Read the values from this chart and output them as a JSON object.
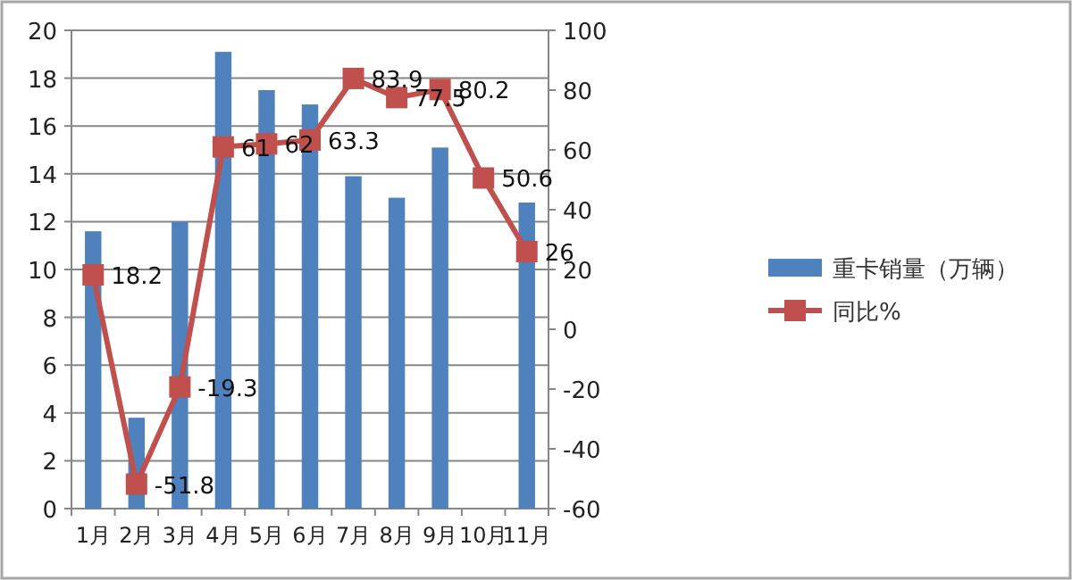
{
  "chart_data": {
    "type": "bar",
    "categories": [
      "1月",
      "2月",
      "3月",
      "4月",
      "5月",
      "6月",
      "7月",
      "8月",
      "9月",
      "10月",
      "11月"
    ],
    "series": [
      {
        "name": "重卡销量（万辆）",
        "color": "#4f81bd",
        "values": [
          11.6,
          3.8,
          12.0,
          19.1,
          17.5,
          16.9,
          13.9,
          13.0,
          15.1,
          null,
          12.8
        ]
      },
      {
        "name": "同比%",
        "type": "line",
        "axis": "y2",
        "color": "#c0504d",
        "marker": "square",
        "values": [
          18.2,
          -51.8,
          -19.3,
          61,
          62,
          63.3,
          83.9,
          77.5,
          80.2,
          50.6,
          26
        ],
        "value_labels": [
          "18.2",
          "-51.8",
          "-19.3",
          "61",
          "62",
          "63.3",
          "83.9",
          "77.5",
          "80.2",
          "50.6",
          "26"
        ]
      }
    ],
    "ylim": [
      0,
      20
    ],
    "yticks": [
      0,
      2,
      4,
      6,
      8,
      10,
      12,
      14,
      16,
      18,
      20
    ],
    "y2lim": [
      -60,
      100
    ],
    "y2ticks": [
      -60,
      -40,
      -20,
      0,
      20,
      40,
      60,
      80,
      100
    ],
    "grid": "y",
    "legend": "right"
  }
}
